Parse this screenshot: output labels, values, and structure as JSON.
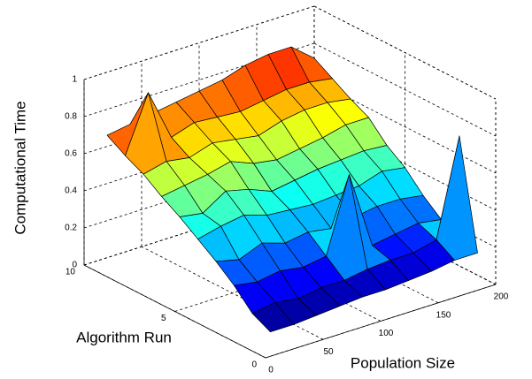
{
  "chart_data": {
    "type": "surface",
    "xlabel": "Population Size",
    "ylabel": "Algorithm Run",
    "zlabel": "Computational Time",
    "x": [
      20,
      40,
      60,
      80,
      100,
      120,
      140,
      160,
      180,
      200
    ],
    "y": [
      1,
      2,
      3,
      4,
      5,
      6,
      7,
      8,
      9,
      10
    ],
    "z": [
      [
        0.05,
        0.05,
        0.06,
        0.07,
        0.08,
        0.08,
        0.09,
        0.1,
        0.12,
        0.12
      ],
      [
        0.1,
        0.12,
        0.1,
        0.12,
        0.12,
        0.14,
        0.15,
        0.15,
        0.18,
        0.7
      ],
      [
        0.2,
        0.18,
        0.2,
        0.18,
        0.2,
        0.6,
        0.18,
        0.2,
        0.22,
        0.2
      ],
      [
        0.28,
        0.25,
        0.3,
        0.26,
        0.28,
        0.26,
        0.28,
        0.3,
        0.3,
        0.28
      ],
      [
        0.35,
        0.38,
        0.4,
        0.36,
        0.35,
        0.34,
        0.35,
        0.36,
        0.4,
        0.38
      ],
      [
        0.42,
        0.4,
        0.48,
        0.45,
        0.4,
        0.42,
        0.44,
        0.45,
        0.46,
        0.45
      ],
      [
        0.48,
        0.5,
        0.52,
        0.55,
        0.5,
        0.48,
        0.5,
        0.52,
        0.55,
        0.55
      ],
      [
        0.55,
        0.58,
        0.56,
        0.6,
        0.58,
        0.56,
        0.6,
        0.62,
        0.62,
        0.6
      ],
      [
        0.6,
        0.9,
        0.62,
        0.66,
        0.65,
        0.64,
        0.66,
        0.68,
        0.68,
        0.66
      ],
      [
        0.66,
        0.68,
        0.7,
        0.72,
        0.74,
        0.76,
        0.8,
        0.82,
        0.82,
        0.72
      ]
    ],
    "xlim": [
      0,
      200
    ],
    "xticks": [
      0,
      50,
      100,
      150,
      200
    ],
    "ylim": [
      0,
      10
    ],
    "yticks": [
      0,
      5,
      10
    ],
    "zlim": [
      0,
      1
    ],
    "zticks": [
      0,
      0.2,
      0.4,
      0.6,
      0.8,
      1
    ],
    "grid": true,
    "colormap": "jet"
  }
}
